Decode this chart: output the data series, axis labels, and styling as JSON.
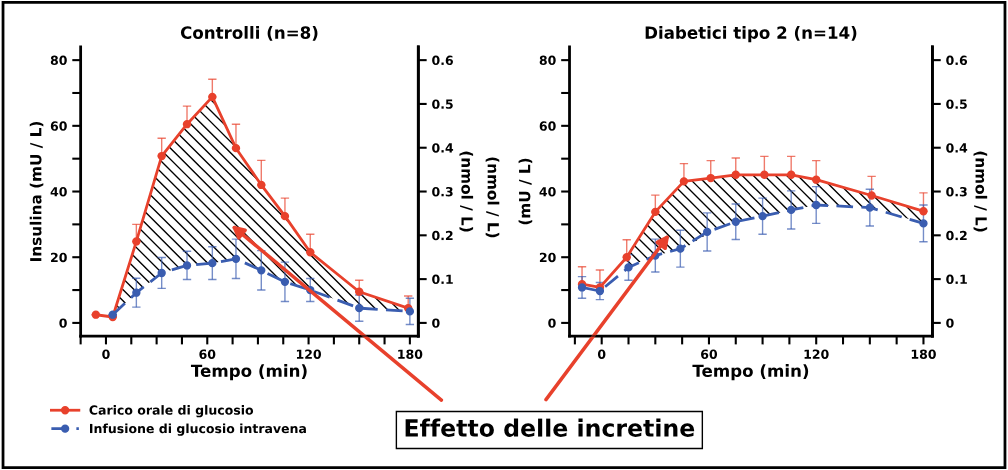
{
  "chart_data": [
    {
      "type": "line",
      "title": "Controlli (n=8)",
      "xlabel": "Tempo (min)",
      "ylabel": "Insulina (mU / L)",
      "y2label": "(nmol / L)",
      "xlim": [
        -15,
        185
      ],
      "xticks": [
        {
          "value": -15,
          "label": null
        },
        0,
        {
          "value": 15,
          "label": null
        },
        {
          "value": 30,
          "label": null
        },
        {
          "value": 45,
          "label": null
        },
        60,
        {
          "value": 75,
          "label": null
        },
        {
          "value": 90,
          "label": null
        },
        {
          "value": 105,
          "label": null
        },
        120,
        {
          "value": 135,
          "label": null
        },
        {
          "value": 150,
          "label": null
        },
        {
          "value": 165,
          "label": null
        },
        180
      ],
      "ylim": [
        -4,
        84
      ],
      "yticks": [
        0,
        {
          "value": 10,
          "label": null
        },
        20,
        {
          "value": 30,
          "label": null
        },
        40,
        {
          "value": 50,
          "label": null
        },
        60,
        {
          "value": 70,
          "label": null
        },
        80
      ],
      "y2lim": [
        -0.03,
        0.63
      ],
      "y2ticks": [
        0,
        0.1,
        0.2,
        0.3,
        0.4,
        0.5,
        0.6
      ],
      "legend": "bottom",
      "grid": false,
      "series": [
        {
          "name": "Carico orale di glucosio",
          "color": "#e8412c",
          "marker": "circle",
          "line_style": "solid",
          "x": [
            -6,
            4,
            18,
            33,
            48,
            63,
            77,
            92,
            106,
            121,
            150,
            179
          ],
          "values": [
            2.5,
            1.8,
            24.8,
            50.8,
            60.5,
            68.8,
            53.2,
            42,
            32.5,
            21.5,
            9.5,
            4.5
          ],
          "lower": [
            null,
            2.5,
            9.2,
            15.2,
            17.5,
            18.2,
            19.5,
            16,
            12.5,
            10,
            4.5,
            3.5
          ],
          "upper": [
            null,
            1.8,
            24.8,
            50.8,
            60.5,
            68.8,
            53.2,
            42,
            32.5,
            21.5,
            9.5,
            4.5
          ],
          "errors": [
            null,
            null,
            [
              24.8,
              30
            ],
            [
              50.8,
              56.2
            ],
            [
              60.5,
              66
            ],
            [
              68.8,
              74.2
            ],
            [
              53.2,
              60.5
            ],
            [
              42,
              49.5
            ],
            [
              32.5,
              38
            ],
            [
              21.5,
              27
            ],
            [
              9.5,
              13
            ],
            [
              4.5,
              8.2
            ]
          ]
        },
        {
          "name": "Infusione di glucosio intravena",
          "color": "#3a5db0",
          "marker": "circle",
          "line_style": "dashed",
          "x": [
            4,
            18,
            33,
            48,
            63,
            77,
            92,
            106,
            121,
            150,
            180
          ],
          "values": [
            2.5,
            9.2,
            15.2,
            17.5,
            18.2,
            19.5,
            16,
            12.5,
            10,
            4.5,
            3.5
          ],
          "errors": [
            null,
            4.4,
            4.7,
            4.3,
            5,
            6,
            6,
            6,
            3.5,
            4,
            4
          ]
        }
      ],
      "annotations": [
        "Effetto delle incretine"
      ]
    },
    {
      "type": "line",
      "title": "Diabetici tipo 2 (n=14)",
      "xlabel": "Tempo (min)",
      "ylabel": "(mU / L)",
      "y2label": "(nmol / L)",
      "xlim": [
        -18,
        185
      ],
      "xticks": [
        {
          "value": -15,
          "label": null
        },
        0,
        {
          "value": 15,
          "label": null
        },
        {
          "value": 30,
          "label": null
        },
        {
          "value": 45,
          "label": null
        },
        60,
        {
          "value": 75,
          "label": null
        },
        {
          "value": 90,
          "label": null
        },
        {
          "value": 105,
          "label": null
        },
        120,
        {
          "value": 135,
          "label": null
        },
        {
          "value": 150,
          "label": null
        },
        {
          "value": 165,
          "label": null
        },
        180
      ],
      "ylim": [
        -4,
        84
      ],
      "yticks": [
        0,
        {
          "value": 10,
          "label": null
        },
        20,
        {
          "value": 30,
          "label": null
        },
        40,
        {
          "value": 50,
          "label": null
        },
        60,
        {
          "value": 70,
          "label": null
        },
        80
      ],
      "y2lim": [
        -0.03,
        0.63
      ],
      "y2ticks": [
        0,
        0.1,
        0.2,
        0.3,
        0.4,
        0.5,
        0.6
      ],
      "grid": false,
      "series": [
        {
          "color": "#e8412c",
          "marker": "circle",
          "line_style": "solid",
          "x": [
            -11,
            -1,
            14,
            30,
            46,
            61,
            75,
            91,
            106,
            120,
            151,
            180
          ],
          "values": [
            11.8,
            10.8,
            20,
            33.8,
            43.1,
            44.1,
            45.1,
            45.1,
            45.1,
            43.6,
            38.8,
            34
          ],
          "lower": [
            null,
            null,
            16.9,
            20.5,
            22.6,
            27.7,
            30.8,
            32.5,
            34.4,
            35.9,
            35.1,
            30.3
          ],
          "upper": [
            null,
            null,
            20,
            33.8,
            43.1,
            44.1,
            45.1,
            45.1,
            45.1,
            43.6,
            38.8,
            34
          ],
          "errors": [
            [
              11.8,
              17.1
            ],
            [
              10.8,
              16.1
            ],
            [
              20,
              25.3
            ],
            [
              33.8,
              38.9
            ],
            [
              43.1,
              48.5
            ],
            [
              44.1,
              49.4
            ],
            [
              45.1,
              50.2
            ],
            [
              45.1,
              50.7
            ],
            [
              45.1,
              50.7
            ],
            [
              43.6,
              49.4
            ],
            [
              38.8,
              44.6
            ],
            [
              34,
              39.6
            ]
          ]
        },
        {
          "color": "#3a5db0",
          "marker": "circle",
          "line_style": "dashed",
          "x": [
            -11,
            -1,
            15,
            30,
            44,
            59,
            75,
            90,
            106,
            120,
            150,
            180
          ],
          "values": [
            10.8,
            9.7,
            16.9,
            20.5,
            22.6,
            27.7,
            30.8,
            32.5,
            34.4,
            35.9,
            35.1,
            30.3
          ],
          "errors": [
            3.3,
            2.6,
            3.9,
            5,
            5.6,
            5.8,
            5.4,
            5.5,
            5.8,
            5.6,
            5.6,
            5.6
          ]
        }
      ],
      "annotations": [
        "(nmol / L)"
      ]
    }
  ]
}
